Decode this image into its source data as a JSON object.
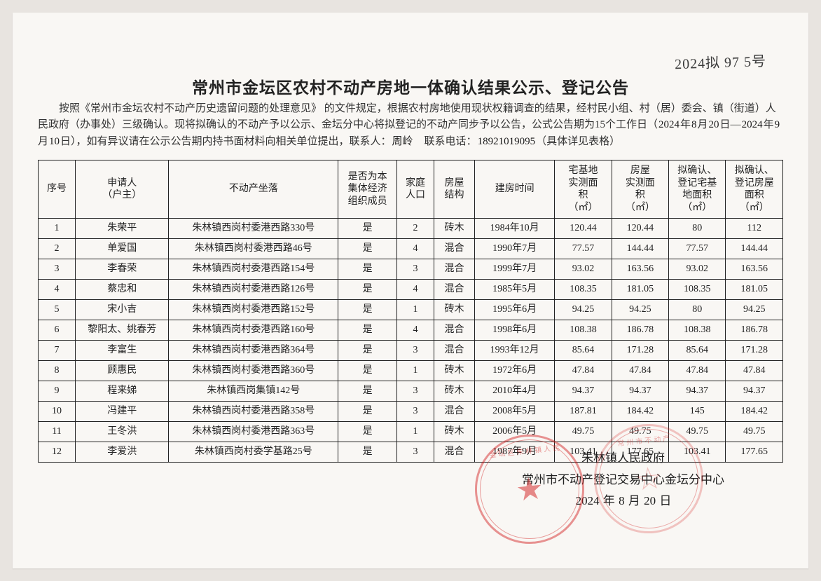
{
  "handnote_topright": "2024拟 97 5号",
  "title": "常州市金坛区农村不动产房地一体确认结果公示、登记公告",
  "intro": {
    "p1a": "按照《常州市金坛农村不动产历史遗留问题的处理意见》 的文件规定，根据农村房地使用现状权籍调查的结果，经村民小组、村（居）委会、镇（街道）人民政府（办事处）三级确认。现将拟确认的不动产予以公示、金坛分中心将拟登记的不动产同步予以公告，公式公告期为15个工作日（",
    "hand_year1": "2024",
    "p1b": "年",
    "hand_m1": "8",
    "p1c": "月",
    "hand_d1": "20",
    "p1d": "日—",
    "hand_year2": "2024",
    "p1e": "年",
    "hand_m2": "9",
    "p1f": "月",
    "hand_d2": "10",
    "p1g": "日），如有异议请在公示公告期内持书面材料向相关单位提出，联系人：",
    "hand_contact": "周岭",
    "p1h": "　联系电话：",
    "hand_phone": "18921019095",
    "p1i": "（具体详见表格）"
  },
  "headers": {
    "seq": "序号",
    "applicant": "申请人\n（户主）",
    "location": "不动产坐落",
    "member": "是否为本\n集体经济\n组织成员",
    "pop": "家庭\n人口",
    "struct": "房屋\n结构",
    "buildtime": "建房时间",
    "land_meas": "宅基地\n实测面\n积\n（㎡）",
    "house_meas": "房屋\n实测面\n积\n（㎡）",
    "reg_land": "拟确认、\n登记宅基\n地面积\n（㎡）",
    "reg_house": "拟确认、\n登记房屋\n面积\n（㎡）"
  },
  "rows": [
    {
      "seq": "1",
      "app": "朱荣平",
      "loc": "朱林镇西岗村委港西路330号",
      "mem": "是",
      "pop": "2",
      "str": "砖木",
      "time": "1984年10月",
      "lm": "120.44",
      "hm": "120.44",
      "rl": "80",
      "rh": "112"
    },
    {
      "seq": "2",
      "app": "单爱国",
      "loc": "朱林镇西岗村委港西路46号",
      "mem": "是",
      "pop": "4",
      "str": "混合",
      "time": "1990年7月",
      "lm": "77.57",
      "hm": "144.44",
      "rl": "77.57",
      "rh": "144.44"
    },
    {
      "seq": "3",
      "app": "李春荣",
      "loc": "朱林镇西岗村委港西路154号",
      "mem": "是",
      "pop": "3",
      "str": "混合",
      "time": "1999年7月",
      "lm": "93.02",
      "hm": "163.56",
      "rl": "93.02",
      "rh": "163.56"
    },
    {
      "seq": "4",
      "app": "蔡忠和",
      "loc": "朱林镇西岗村委港西路126号",
      "mem": "是",
      "pop": "4",
      "str": "混合",
      "time": "1985年5月",
      "lm": "108.35",
      "hm": "181.05",
      "rl": "108.35",
      "rh": "181.05"
    },
    {
      "seq": "5",
      "app": "宋小吉",
      "loc": "朱林镇西岗村委港西路152号",
      "mem": "是",
      "pop": "1",
      "str": "砖木",
      "time": "1995年6月",
      "lm": "94.25",
      "hm": "94.25",
      "rl": "80",
      "rh": "94.25"
    },
    {
      "seq": "6",
      "app": "黎阳太、姚春芳",
      "loc": "朱林镇西岗村委港西路160号",
      "mem": "是",
      "pop": "4",
      "str": "混合",
      "time": "1998年6月",
      "lm": "108.38",
      "hm": "186.78",
      "rl": "108.38",
      "rh": "186.78"
    },
    {
      "seq": "7",
      "app": "李富生",
      "loc": "朱林镇西岗村委港西路364号",
      "mem": "是",
      "pop": "3",
      "str": "混合",
      "time": "1993年12月",
      "lm": "85.64",
      "hm": "171.28",
      "rl": "85.64",
      "rh": "171.28"
    },
    {
      "seq": "8",
      "app": "顾惠民",
      "loc": "朱林镇西岗村委港西路360号",
      "mem": "是",
      "pop": "1",
      "str": "砖木",
      "time": "1972年6月",
      "lm": "47.84",
      "hm": "47.84",
      "rl": "47.84",
      "rh": "47.84"
    },
    {
      "seq": "9",
      "app": "程来娣",
      "loc": "朱林镇西岗集镇142号",
      "mem": "是",
      "pop": "3",
      "str": "砖木",
      "time": "2010年4月",
      "lm": "94.37",
      "hm": "94.37",
      "rl": "94.37",
      "rh": "94.37"
    },
    {
      "seq": "10",
      "app": "冯建平",
      "loc": "朱林镇西岗村委港西路358号",
      "mem": "是",
      "pop": "3",
      "str": "混合",
      "time": "2008年5月",
      "lm": "187.81",
      "hm": "184.42",
      "rl": "145",
      "rh": "184.42"
    },
    {
      "seq": "11",
      "app": "王冬洪",
      "loc": "朱林镇西岗村委港西路363号",
      "mem": "是",
      "pop": "1",
      "str": "砖木",
      "time": "2006年5月",
      "lm": "49.75",
      "hm": "49.75",
      "rl": "49.75",
      "rh": "49.75"
    },
    {
      "seq": "12",
      "app": "李爱洪",
      "loc": "朱林镇西岗村委学基路25号",
      "mem": "是",
      "pop": "3",
      "str": "混合",
      "time": "1987年9月",
      "lm": "103.41",
      "hm": "177.65",
      "rl": "103.41",
      "rh": "177.65"
    }
  ],
  "footer": {
    "l1": "朱林镇人民政府",
    "l2": "常州市不动产登记交易中心金坛分中心",
    "l3a": "2024",
    "l3b": " 年 ",
    "l3c": "8",
    "l3d": " 月 ",
    "l3e": "20",
    "l3f": " 日"
  },
  "stamp1_text": "金坛区朱林镇人民",
  "stamp2_text": "常州市不动产"
}
